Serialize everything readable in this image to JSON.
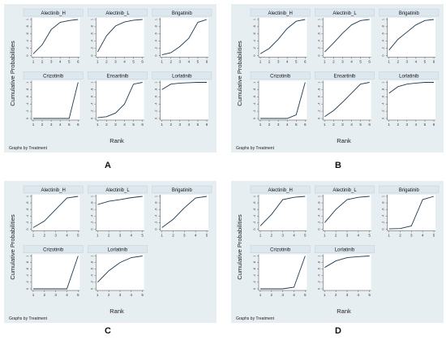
{
  "figure": {
    "ylabel": "Cumulative Probabilities",
    "xlabel": "Rank",
    "note": "Graphs by Treatment",
    "colors": {
      "background": "#e6eef2",
      "plot_area": "#ffffff",
      "strip": "#dde7ee",
      "line": "#1c3a52",
      "axis": "#444444"
    }
  },
  "chart_data": [
    {
      "type": "line",
      "panel_label": "A",
      "x": [
        1,
        2,
        3,
        4,
        5,
        6
      ],
      "xticks": [
        "1",
        "2",
        "3",
        "4",
        "5",
        "6"
      ],
      "yticks": [
        "0",
        ".2",
        ".4",
        ".6",
        ".8",
        "1"
      ],
      "ylim": [
        0,
        1
      ],
      "series": [
        {
          "name": "Alectinib_H",
          "values": [
            0.05,
            0.3,
            0.72,
            0.92,
            0.97,
            1.0
          ]
        },
        {
          "name": "Alectinib_L",
          "values": [
            0.1,
            0.55,
            0.82,
            0.93,
            0.98,
            1.0
          ]
        },
        {
          "name": "Brigatinib",
          "values": [
            0.02,
            0.08,
            0.25,
            0.48,
            0.92,
            1.0
          ]
        },
        {
          "name": "Crizotinib",
          "values": [
            0.0,
            0.0,
            0.0,
            0.0,
            0.0,
            1.0
          ]
        },
        {
          "name": "Ensartinib",
          "values": [
            0.02,
            0.05,
            0.15,
            0.4,
            0.95,
            1.0
          ]
        },
        {
          "name": "Lorlatinib",
          "values": [
            0.8,
            0.95,
            0.98,
            0.99,
            1.0,
            1.0
          ]
        }
      ]
    },
    {
      "type": "line",
      "panel_label": "B",
      "x": [
        1,
        2,
        3,
        4,
        5,
        6
      ],
      "xticks": [
        "1",
        "2",
        "3",
        "4",
        "5",
        "6"
      ],
      "yticks": [
        "0",
        ".2",
        ".4",
        ".6",
        ".8",
        "1"
      ],
      "ylim": [
        0,
        1
      ],
      "series": [
        {
          "name": "Alectinib_H",
          "values": [
            0.05,
            0.2,
            0.45,
            0.75,
            0.95,
            1.0
          ]
        },
        {
          "name": "Alectinib_L",
          "values": [
            0.1,
            0.35,
            0.62,
            0.85,
            0.97,
            1.0
          ]
        },
        {
          "name": "Brigatinib",
          "values": [
            0.15,
            0.45,
            0.65,
            0.85,
            0.97,
            1.0
          ]
        },
        {
          "name": "Crizotinib",
          "values": [
            0.0,
            0.0,
            0.0,
            0.0,
            0.1,
            1.0
          ]
        },
        {
          "name": "Ensartinib",
          "values": [
            0.05,
            0.22,
            0.45,
            0.7,
            0.95,
            1.0
          ]
        },
        {
          "name": "Lorlatinib",
          "values": [
            0.7,
            0.88,
            0.95,
            0.98,
            1.0,
            1.0
          ]
        }
      ]
    },
    {
      "type": "line",
      "panel_label": "C",
      "x": [
        1,
        2,
        3,
        4,
        5
      ],
      "xticks": [
        "1",
        "2",
        "3",
        "4",
        "5"
      ],
      "yticks": [
        "0",
        ".2",
        ".4",
        ".6",
        ".8",
        "1"
      ],
      "ylim": [
        0,
        1
      ],
      "series": [
        {
          "name": "Alectinib_H",
          "values": [
            0.05,
            0.25,
            0.6,
            0.95,
            1.0
          ]
        },
        {
          "name": "Alectinib_L",
          "values": [
            0.75,
            0.85,
            0.9,
            0.96,
            1.0
          ]
        },
        {
          "name": "Brigatinib",
          "values": [
            0.05,
            0.3,
            0.65,
            0.95,
            1.0
          ]
        },
        {
          "name": "Crizotinib",
          "values": [
            0.0,
            0.0,
            0.0,
            0.0,
            1.0
          ]
        },
        {
          "name": "Lorlatinib",
          "values": [
            0.2,
            0.55,
            0.8,
            0.95,
            1.0
          ]
        }
      ]
    },
    {
      "type": "line",
      "panel_label": "D",
      "x": [
        1,
        2,
        3,
        4,
        5
      ],
      "xticks": [
        "1",
        "2",
        "3",
        "4",
        "5"
      ],
      "yticks": [
        "0",
        ".2",
        ".4",
        ".6",
        ".8",
        "1"
      ],
      "ylim": [
        0,
        1
      ],
      "series": [
        {
          "name": "Alectinib_H",
          "values": [
            0.1,
            0.45,
            0.9,
            0.97,
            1.0
          ]
        },
        {
          "name": "Alectinib_L",
          "values": [
            0.2,
            0.6,
            0.9,
            0.97,
            1.0
          ]
        },
        {
          "name": "Brigatinib",
          "values": [
            0.01,
            0.02,
            0.1,
            0.9,
            1.0
          ]
        },
        {
          "name": "Crizotinib",
          "values": [
            0.0,
            0.0,
            0.0,
            0.05,
            1.0
          ]
        },
        {
          "name": "Lorlatinib",
          "values": [
            0.65,
            0.85,
            0.95,
            0.98,
            1.0
          ]
        }
      ]
    }
  ]
}
